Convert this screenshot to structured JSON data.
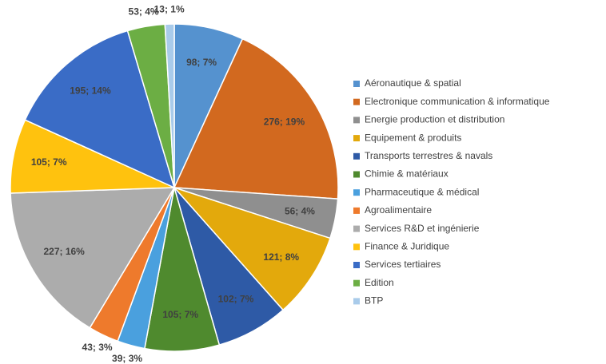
{
  "chart_data": {
    "type": "pie",
    "categories": [
      "Aéronautique & spatial",
      "Electronique communication & informatique",
      "Energie production et distribution",
      "Equipement & produits",
      "Transports terrestres & navals",
      "Chimie & matériaux",
      "Pharmaceutique & médical",
      "Agroalimentaire",
      "Services R&D et ingénierie",
      "Finance & Juridique",
      "Services tertiaires",
      "Edition",
      "BTP"
    ],
    "values": [
      98,
      276,
      56,
      121,
      102,
      105,
      39,
      43,
      227,
      105,
      195,
      53,
      13
    ],
    "value_labels": [
      "98; 7%",
      "276; 19%",
      "56; 4%",
      "121; 8%",
      "102; 7%",
      "105; 7%",
      "39; 3%",
      "43; 3%",
      "227; 16%",
      "105; 7%",
      "195; 14%",
      "53; 4%",
      "13; 1%"
    ],
    "colors": [
      "#5592cf",
      "#d2691f",
      "#8f8f8f",
      "#e3a90c",
      "#2e5aa6",
      "#4f8a2e",
      "#4aa0de",
      "#ee7a2c",
      "#acacac",
      "#ffc20e",
      "#3a6cc6",
      "#6cae44",
      "#a9cbea"
    ],
    "legend": "right"
  }
}
